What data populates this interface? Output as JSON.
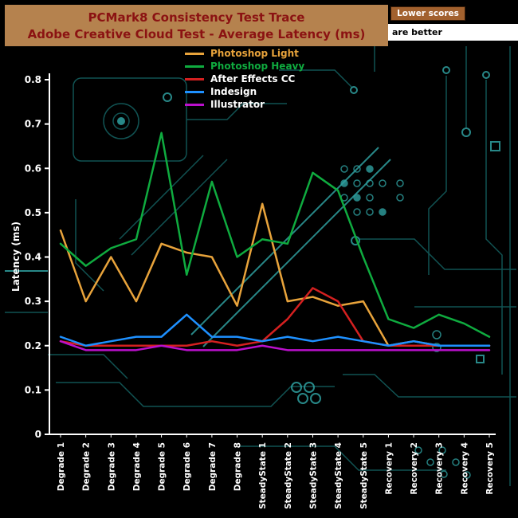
{
  "header": {
    "title_line1": "PCMark8 Consistency Test Trace",
    "title_line2": "Adobe Creative Cloud Test -  Average Latency (ms)",
    "bg_color": "#b5824e",
    "text_color": "#8b1212"
  },
  "callout": {
    "lower_scores": "Lower scores",
    "are_better": "are better"
  },
  "colors": {
    "background": "#000000",
    "circuit_dim": "#135c5c",
    "circuit_bright": "#2fa0a0",
    "axis": "#ffffff"
  },
  "chart_data": {
    "type": "line",
    "title": "PCMark8 Consistency Test Trace — Adobe Creative Cloud Test - Average Latency (ms)",
    "xlabel": "",
    "ylabel": "Latency (ms)",
    "ylim": [
      0,
      0.8
    ],
    "yticks": [
      0,
      0.1,
      0.2,
      0.3,
      0.4,
      0.5,
      0.6,
      0.7,
      0.8
    ],
    "grid": false,
    "legend_position": "top-left",
    "categories": [
      "Degrade 1",
      "Degrade 2",
      "Degrade 3",
      "Degrade 4",
      "Degrade 5",
      "Degrade 6",
      "Degrade 7",
      "Degrade 8",
      "SteadyState 1",
      "SteadyState 2",
      "SteadyState 3",
      "SteadyState 4",
      "SteadyState 5",
      "Recovery 1",
      "Recovery 2",
      "Recovery 3",
      "Recovery 4",
      "Recovery 5"
    ],
    "series": [
      {
        "name": "Photoshop Light",
        "color": "#e8a33b",
        "label_color": "#e8a33b",
        "values": [
          0.46,
          0.3,
          0.4,
          0.3,
          0.43,
          0.41,
          0.4,
          0.29,
          0.52,
          0.3,
          0.31,
          0.29,
          0.3,
          0.2,
          0.21,
          0.2,
          0.2,
          0.2
        ]
      },
      {
        "name": "Photoshop Heavy",
        "color": "#0fab3f",
        "label_color": "#0fab3f",
        "values": [
          0.43,
          0.38,
          0.42,
          0.44,
          0.68,
          0.36,
          0.57,
          0.4,
          0.44,
          0.43,
          0.59,
          0.55,
          0.4,
          0.26,
          0.24,
          0.27,
          0.25,
          0.22
        ]
      },
      {
        "name": "After Effects CC",
        "color": "#d42020",
        "label_color": "#ffffff",
        "values": [
          0.21,
          0.2,
          0.2,
          0.2,
          0.2,
          0.2,
          0.21,
          0.2,
          0.21,
          0.26,
          0.33,
          0.3,
          0.21,
          0.2,
          0.2,
          0.2,
          0.2,
          0.2
        ]
      },
      {
        "name": "Indesign",
        "color": "#1e90ff",
        "label_color": "#ffffff",
        "values": [
          0.22,
          0.2,
          0.21,
          0.22,
          0.22,
          0.27,
          0.22,
          0.22,
          0.21,
          0.22,
          0.21,
          0.22,
          0.21,
          0.2,
          0.21,
          0.2,
          0.2,
          0.2
        ]
      },
      {
        "name": "Illustrator",
        "color": "#bb10cc",
        "label_color": "#ffffff",
        "values": [
          0.21,
          0.19,
          0.19,
          0.19,
          0.2,
          0.19,
          0.19,
          0.19,
          0.2,
          0.19,
          0.19,
          0.19,
          0.19,
          0.19,
          0.19,
          0.19,
          0.19,
          0.19
        ]
      }
    ]
  }
}
